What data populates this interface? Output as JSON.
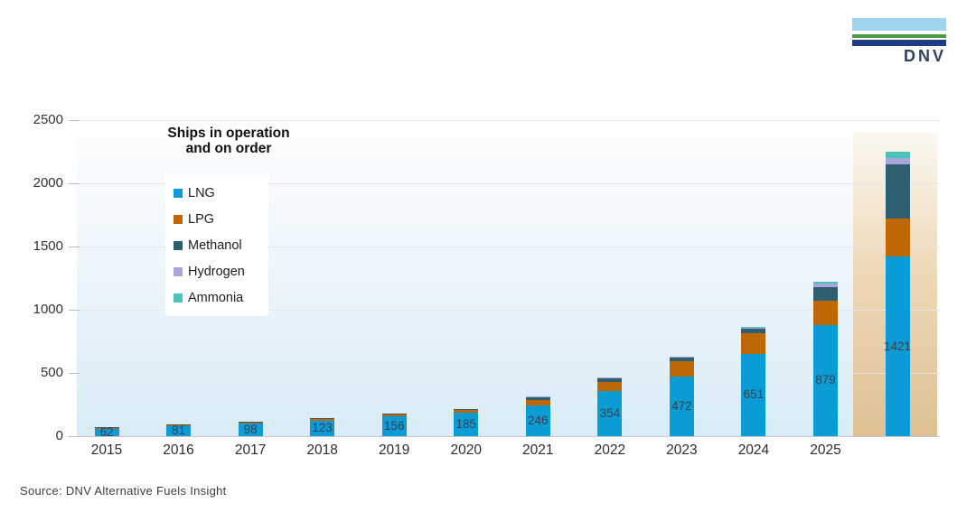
{
  "logo": {
    "text": "DNV"
  },
  "chart_data": {
    "type": "bar",
    "stacked": true,
    "title": "Ships in operation and on order",
    "title_lines": [
      "Ships in operation",
      "and on order"
    ],
    "categories": [
      "2015",
      "2016",
      "2017",
      "2018",
      "2019",
      "2020",
      "2021",
      "2022",
      "2023",
      "2024",
      "2025",
      ""
    ],
    "series": [
      {
        "name": "LNG",
        "color": "#0b9bd7",
        "values": [
          62,
          81,
          98,
          123,
          156,
          185,
          246,
          354,
          472,
          651,
          879,
          1421
        ]
      },
      {
        "name": "LPG",
        "color": "#bf6605",
        "values": [
          4,
          8,
          11,
          13,
          15,
          22,
          38,
          75,
          120,
          160,
          190,
          300
        ]
      },
      {
        "name": "Methanol",
        "color": "#2e5f70",
        "values": [
          3,
          4,
          6,
          8,
          10,
          8,
          25,
          30,
          35,
          40,
          110,
          430
        ]
      },
      {
        "name": "Hydrogen",
        "color": "#a9a6dc",
        "values": [
          0,
          0,
          0,
          0,
          0,
          0,
          5,
          5,
          5,
          8,
          30,
          50
        ]
      },
      {
        "name": "Ammonia",
        "color": "#4cc3b8",
        "values": [
          0,
          0,
          0,
          0,
          0,
          0,
          0,
          0,
          0,
          3,
          10,
          50
        ]
      }
    ],
    "bar_value_labels": [
      "62",
      "81",
      "98",
      "123",
      "156",
      "185",
      "246",
      "354",
      "472",
      "651",
      "879",
      "1421"
    ],
    "y_ticks": [
      0,
      500,
      1000,
      1500,
      2000,
      2500
    ],
    "ylim": [
      0,
      2500
    ],
    "grid": "horizontal",
    "legend_position": "upper-left-inside",
    "highlight_last_column": true
  },
  "source_note": "Source: DNV Alternative Fuels Insight",
  "palette": {
    "plot_bg_top": "#fcfdfe",
    "plot_bg_bottom": "#d9ecf7",
    "highlight_top": "#fbf8f1",
    "highlight_bottom": "#dfc094",
    "gridline": "#e7e7e7",
    "axis_text": "#333333",
    "logo_light_blue": "#9fd4ec",
    "logo_green": "#4a9c3d",
    "logo_dark_blue": "#1c3d85"
  }
}
